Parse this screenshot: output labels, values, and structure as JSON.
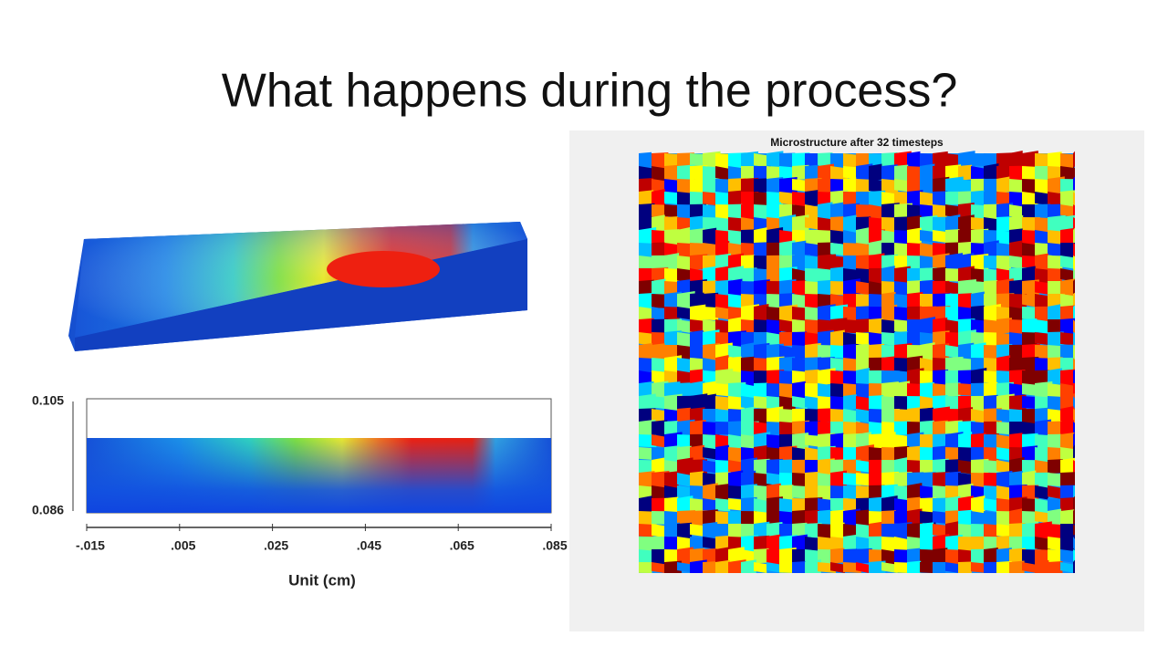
{
  "title": "What happens during the process?",
  "left_figure": {
    "y_labels": [
      "0.105",
      "0.086"
    ],
    "x_labels": [
      "-.015",
      ".005",
      ".025",
      ".045",
      ".065",
      ".085"
    ],
    "x_axis_label": "Unit (cm)"
  },
  "right_figure": {
    "title": "Microstructure after 32 timesteps"
  }
}
